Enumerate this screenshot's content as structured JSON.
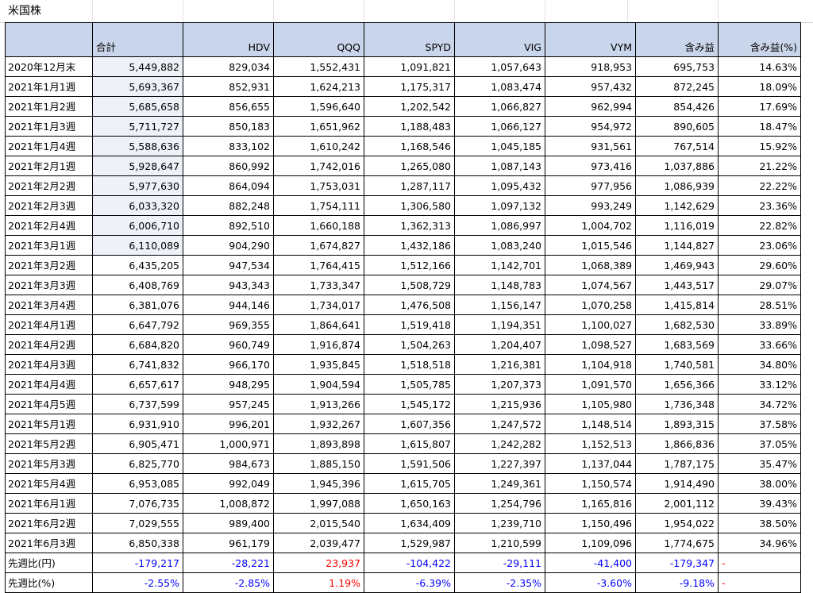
{
  "title": "米国株",
  "columns": [
    "",
    "合計",
    "HDV",
    "QQQ",
    "SPYD",
    "VIG",
    "VYM",
    "含み益",
    "含み益(%)"
  ],
  "rows": [
    [
      "2020年12月末",
      "5,449,882",
      "829,034",
      "1,552,431",
      "1,091,821",
      "1,057,643",
      "918,953",
      "695,753",
      "14.63%"
    ],
    [
      "2021年1月1週",
      "5,693,367",
      "852,931",
      "1,624,213",
      "1,175,317",
      "1,083,474",
      "957,432",
      "872,245",
      "18.09%"
    ],
    [
      "2021年1月2週",
      "5,685,658",
      "856,655",
      "1,596,640",
      "1,202,542",
      "1,066,827",
      "962,994",
      "854,426",
      "17.69%"
    ],
    [
      "2021年1月3週",
      "5,711,727",
      "850,183",
      "1,651,962",
      "1,188,483",
      "1,066,127",
      "954,972",
      "890,605",
      "18.47%"
    ],
    [
      "2021年1月4週",
      "5,588,636",
      "833,102",
      "1,610,242",
      "1,168,546",
      "1,045,185",
      "931,561",
      "767,514",
      "15.92%"
    ],
    [
      "2021年2月1週",
      "5,928,647",
      "860,992",
      "1,742,016",
      "1,265,080",
      "1,087,143",
      "973,416",
      "1,037,886",
      "21.22%"
    ],
    [
      "2021年2月2週",
      "5,977,630",
      "864,094",
      "1,753,031",
      "1,287,117",
      "1,095,432",
      "977,956",
      "1,086,939",
      "22.22%"
    ],
    [
      "2021年2月3週",
      "6,033,320",
      "882,248",
      "1,754,111",
      "1,306,580",
      "1,097,132",
      "993,249",
      "1,142,629",
      "23.36%"
    ],
    [
      "2021年2月4週",
      "6,006,710",
      "892,510",
      "1,660,188",
      "1,362,313",
      "1,086,997",
      "1,004,702",
      "1,116,019",
      "22.82%"
    ],
    [
      "2021年3月1週",
      "6,110,089",
      "904,290",
      "1,674,827",
      "1,432,186",
      "1,083,240",
      "1,015,546",
      "1,144,827",
      "23.06%"
    ],
    [
      "2021年3月2週",
      "6,435,205",
      "947,534",
      "1,764,415",
      "1,512,166",
      "1,142,701",
      "1,068,389",
      "1,469,943",
      "29.60%"
    ],
    [
      "2021年3月3週",
      "6,408,769",
      "943,343",
      "1,733,347",
      "1,508,729",
      "1,148,783",
      "1,074,567",
      "1,443,517",
      "29.07%"
    ],
    [
      "2021年3月4週",
      "6,381,076",
      "944,146",
      "1,734,017",
      "1,476,508",
      "1,156,147",
      "1,070,258",
      "1,415,814",
      "28.51%"
    ],
    [
      "2021年4月1週",
      "6,647,792",
      "969,355",
      "1,864,641",
      "1,519,418",
      "1,194,351",
      "1,100,027",
      "1,682,530",
      "33.89%"
    ],
    [
      "2021年4月2週",
      "6,684,820",
      "960,749",
      "1,916,874",
      "1,504,263",
      "1,204,407",
      "1,098,527",
      "1,683,569",
      "33.66%"
    ],
    [
      "2021年4月3週",
      "6,741,832",
      "966,170",
      "1,935,845",
      "1,518,518",
      "1,216,381",
      "1,104,918",
      "1,740,581",
      "34.80%"
    ],
    [
      "2021年4月4週",
      "6,657,617",
      "948,295",
      "1,904,594",
      "1,505,785",
      "1,207,373",
      "1,091,570",
      "1,656,366",
      "33.12%"
    ],
    [
      "2021年4月5週",
      "6,737,599",
      "957,245",
      "1,913,266",
      "1,545,172",
      "1,215,936",
      "1,105,980",
      "1,736,348",
      "34.72%"
    ],
    [
      "2021年5月1週",
      "6,931,910",
      "996,201",
      "1,932,267",
      "1,607,356",
      "1,247,572",
      "1,148,514",
      "1,893,315",
      "37.58%"
    ],
    [
      "2021年5月2週",
      "6,905,471",
      "1,000,971",
      "1,893,898",
      "1,615,807",
      "1,242,282",
      "1,152,513",
      "1,866,836",
      "37.05%"
    ],
    [
      "2021年5月3週",
      "6,825,770",
      "984,673",
      "1,885,150",
      "1,591,506",
      "1,227,397",
      "1,137,044",
      "1,787,175",
      "35.47%"
    ],
    [
      "2021年5月4週",
      "6,953,085",
      "992,049",
      "1,945,396",
      "1,615,705",
      "1,249,361",
      "1,150,574",
      "1,914,490",
      "38.00%"
    ],
    [
      "2021年6月1週",
      "7,076,735",
      "1,008,872",
      "1,997,088",
      "1,650,163",
      "1,254,796",
      "1,165,816",
      "2,001,112",
      "39.43%"
    ],
    [
      "2021年6月2週",
      "7,029,555",
      "989,400",
      "2,015,540",
      "1,634,409",
      "1,239,710",
      "1,150,496",
      "1,954,022",
      "38.50%"
    ],
    [
      "2021年6月3週",
      "6,850,338",
      "961,179",
      "2,039,477",
      "1,529,987",
      "1,210,599",
      "1,109,096",
      "1,774,675",
      "34.96%"
    ]
  ],
  "summary_rows": [
    {
      "label": "先週比(円)",
      "values": [
        "-179,217",
        "-28,221",
        "23,937",
        "-104,422",
        "-29,111",
        "-41,400",
        "-179,347"
      ],
      "colors": [
        "blue",
        "blue",
        "red",
        "blue",
        "blue",
        "blue",
        "blue"
      ],
      "last": "-"
    },
    {
      "label": "先週比(%)",
      "values": [
        "-2.55%",
        "-2.85%",
        "1.19%",
        "-6.39%",
        "-2.35%",
        "-3.60%",
        "-9.18%"
      ],
      "colors": [
        "blue",
        "blue",
        "red",
        "blue",
        "blue",
        "blue",
        "blue"
      ],
      "last": "-"
    }
  ],
  "colors": {
    "header_bg": "#c9d5ea",
    "total_highlight_bg": "#eef1f8",
    "negative": "#0000ff",
    "positive": "#ff0000"
  }
}
